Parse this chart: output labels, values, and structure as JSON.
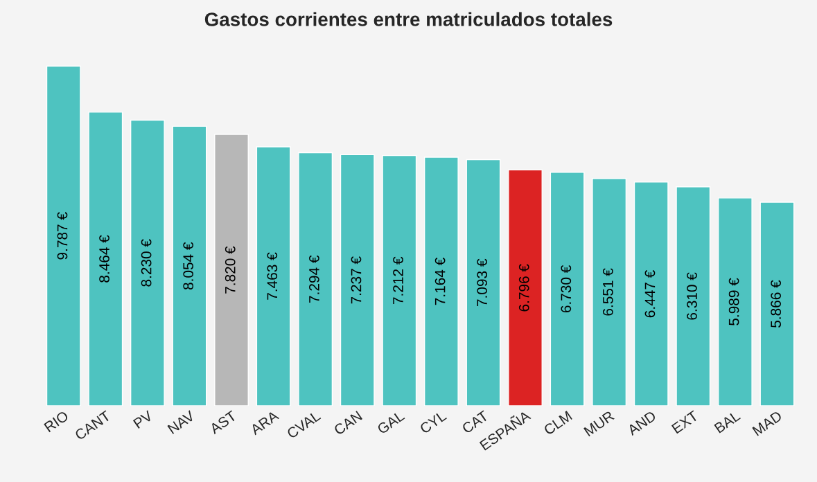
{
  "chart_data": {
    "type": "bar",
    "title": "Gastos corrientes entre matriculados totales",
    "categories": [
      "RIO",
      "CANT",
      "PV",
      "NAV",
      "AST",
      "ARA",
      "CVAL",
      "CAN",
      "GAL",
      "CYL",
      "CAT",
      "ESPAÑA",
      "CLM",
      "MUR",
      "AND",
      "EXT",
      "BAL",
      "MAD"
    ],
    "values": [
      9787,
      8464,
      8230,
      8054,
      7820,
      7463,
      7294,
      7237,
      7212,
      7164,
      7093,
      6796,
      6730,
      6551,
      6447,
      6310,
      5989,
      5866
    ],
    "value_labels": [
      "9.787 €",
      "8.464 €",
      "8.230 €",
      "8.054 €",
      "7.820 €",
      "7.463 €",
      "7.294 €",
      "7.237 €",
      "7.212 €",
      "7.164 €",
      "7.093 €",
      "6.796 €",
      "6.730 €",
      "6.551 €",
      "6.447 €",
      "6.310 €",
      "5.989 €",
      "5.866 €"
    ],
    "colors": [
      "#4ec3c0",
      "#4ec3c0",
      "#4ec3c0",
      "#4ec3c0",
      "#b7b7b7",
      "#4ec3c0",
      "#4ec3c0",
      "#4ec3c0",
      "#4ec3c0",
      "#4ec3c0",
      "#4ec3c0",
      "#dc2323",
      "#4ec3c0",
      "#4ec3c0",
      "#4ec3c0",
      "#4ec3c0",
      "#4ec3c0",
      "#4ec3c0"
    ],
    "tick_labels": "x",
    "grid": false,
    "legend": false
  }
}
